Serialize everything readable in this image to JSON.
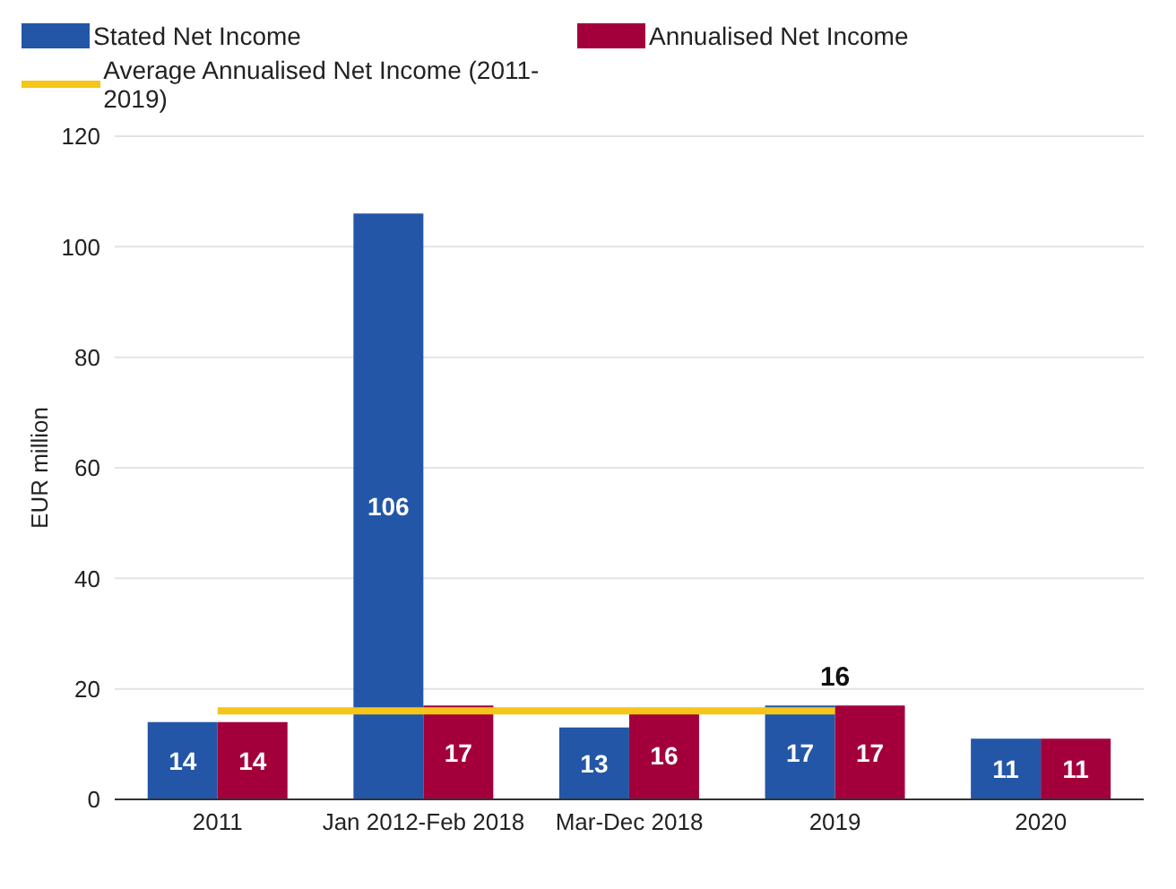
{
  "chart_data": {
    "type": "bar",
    "categories": [
      "2011",
      "Jan 2012-Feb 2018",
      "Mar-Dec 2018",
      "2019",
      "2020"
    ],
    "ylabel": "EUR million",
    "ylim": [
      0,
      120
    ],
    "yticks": [
      0,
      20,
      40,
      60,
      80,
      100,
      120
    ],
    "grid": "y",
    "legend": "top left",
    "data_labels": true,
    "series": [
      {
        "name": "Stated Net Income",
        "color": "#2356a6",
        "values": [
          14,
          106,
          13,
          17,
          11
        ]
      },
      {
        "name": "Annualised Net Income",
        "color": "#a3003b",
        "values": [
          14,
          17,
          16,
          17,
          11
        ]
      },
      {
        "name": "Average Annualised Net Income (2011-2019)",
        "type": "line",
        "color": "#f5c518",
        "values": [
          16,
          16,
          16,
          16,
          null
        ],
        "value_labels": [
          null,
          null,
          null,
          "16",
          null
        ]
      }
    ]
  }
}
